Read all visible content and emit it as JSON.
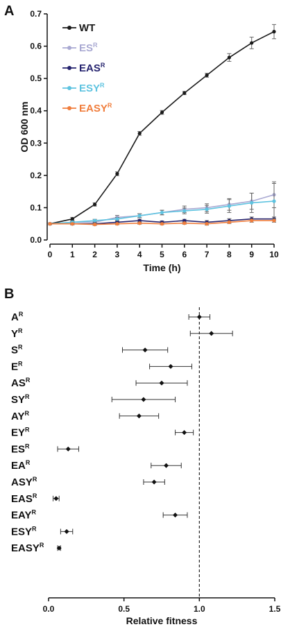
{
  "chart_data": [
    {
      "panel": "A",
      "type": "line",
      "xlabel": "Time (h)",
      "ylabel": "OD 600 nm",
      "xlim": [
        0,
        10
      ],
      "ylim": [
        0,
        0.7
      ],
      "x_ticks": [
        "0",
        "1",
        "2",
        "3",
        "4",
        "5",
        "6",
        "7",
        "8",
        "9",
        "10"
      ],
      "y_ticks": [
        "0.0",
        "0.1",
        "0.2",
        "0.3",
        "0.4",
        "0.5",
        "0.6",
        "0.7"
      ],
      "legend_position": "top-left",
      "x": [
        0,
        1,
        2,
        3,
        4,
        5,
        6,
        7,
        8,
        9,
        10
      ],
      "series": [
        {
          "name": "WT",
          "base": "WT",
          "sup": "",
          "color": "#1a1a1a",
          "values": [
            0.05,
            0.065,
            0.11,
            0.205,
            0.33,
            0.395,
            0.455,
            0.51,
            0.565,
            0.61,
            0.645
          ],
          "errors": [
            0.003,
            0.005,
            0.005,
            0.006,
            0.006,
            0.006,
            0.005,
            0.006,
            0.012,
            0.018,
            0.022
          ]
        },
        {
          "name": "ESᴿ",
          "base": "ES",
          "sup": "R",
          "color": "#a9a9d2",
          "values": [
            0.05,
            0.055,
            0.055,
            0.07,
            0.075,
            0.085,
            0.095,
            0.1,
            0.11,
            0.12,
            0.14
          ],
          "errors": [
            0.002,
            0.004,
            0.005,
            0.006,
            0.006,
            0.007,
            0.01,
            0.012,
            0.018,
            0.025,
            0.04
          ]
        },
        {
          "name": "EASᴿ",
          "base": "EAS",
          "sup": "R",
          "color": "#25236e",
          "values": [
            0.05,
            0.05,
            0.05,
            0.055,
            0.06,
            0.055,
            0.06,
            0.055,
            0.06,
            0.065,
            0.065
          ],
          "errors": [
            0.002,
            0.003,
            0.003,
            0.003,
            0.004,
            0.004,
            0.004,
            0.005,
            0.006,
            0.006,
            0.006
          ]
        },
        {
          "name": "ESYᴿ",
          "base": "ESY",
          "sup": "R",
          "color": "#5ec3e0",
          "values": [
            0.05,
            0.055,
            0.06,
            0.065,
            0.075,
            0.085,
            0.09,
            0.095,
            0.105,
            0.115,
            0.12
          ],
          "errors": [
            0.002,
            0.003,
            0.004,
            0.005,
            0.006,
            0.007,
            0.009,
            0.012,
            0.02,
            0.03,
            0.055
          ]
        },
        {
          "name": "EASYᴿ",
          "base": "EASY",
          "sup": "R",
          "color": "#f07d3c",
          "values": [
            0.05,
            0.05,
            0.048,
            0.05,
            0.052,
            0.05,
            0.052,
            0.05,
            0.055,
            0.06,
            0.06
          ],
          "errors": [
            0.002,
            0.003,
            0.003,
            0.003,
            0.003,
            0.003,
            0.003,
            0.004,
            0.004,
            0.005,
            0.005
          ]
        }
      ]
    },
    {
      "panel": "B",
      "type": "scatter",
      "xlabel": "Relative fitness",
      "xlim": [
        0,
        1.5
      ],
      "x_ticks": [
        "0.0",
        "0.5",
        "1.0",
        "1.5"
      ],
      "reference_line": 1.0,
      "categories": [
        {
          "base": "A",
          "sup": "R",
          "value": 1.0,
          "err": 0.07
        },
        {
          "base": "Y",
          "sup": "R",
          "value": 1.08,
          "err": 0.14
        },
        {
          "base": "S",
          "sup": "R",
          "value": 0.64,
          "err": 0.15
        },
        {
          "base": "E",
          "sup": "R",
          "value": 0.81,
          "err": 0.14
        },
        {
          "base": "AS",
          "sup": "R",
          "value": 0.75,
          "err": 0.17
        },
        {
          "base": "SY",
          "sup": "R",
          "value": 0.63,
          "err": 0.21
        },
        {
          "base": "AY",
          "sup": "R",
          "value": 0.6,
          "err": 0.13
        },
        {
          "base": "EY",
          "sup": "R",
          "value": 0.9,
          "err": 0.06
        },
        {
          "base": "ES",
          "sup": "R",
          "value": 0.13,
          "err": 0.07
        },
        {
          "base": "EA",
          "sup": "R",
          "value": 0.78,
          "err": 0.1
        },
        {
          "base": "ASY",
          "sup": "R",
          "value": 0.7,
          "err": 0.07
        },
        {
          "base": "EAS",
          "sup": "R",
          "value": 0.05,
          "err": 0.02
        },
        {
          "base": "EAY",
          "sup": "R",
          "value": 0.84,
          "err": 0.08
        },
        {
          "base": "ESY",
          "sup": "R",
          "value": 0.12,
          "err": 0.04
        },
        {
          "base": "EASY",
          "sup": "R",
          "value": 0.07,
          "err": 0.01
        }
      ]
    }
  ],
  "labels": {
    "panel_a": "A",
    "panel_b": "B"
  }
}
